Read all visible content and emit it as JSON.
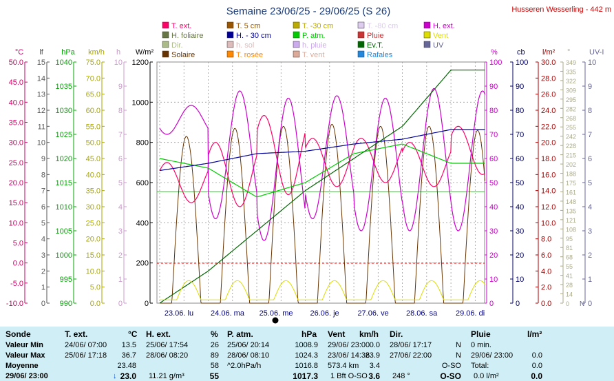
{
  "title": "Semaine 23/06/25 - 29/06/25 (S 26)",
  "station": "Husseren Wesserling - 442 m",
  "colors": {
    "title": "#1a3a7a",
    "station": "#cc0000",
    "grid": "#999999",
    "red_line": "#dd0000",
    "green_line": "#33cc33",
    "panel": "#cfeef5"
  },
  "legend": [
    {
      "label": "T. ext.",
      "color": "#ff0066"
    },
    {
      "label": "T. 5 cm",
      "color": "#995500"
    },
    {
      "label": "T. -30 cm",
      "color": "#bbaa00"
    },
    {
      "label": "T. -80 cm",
      "color": "#ddccee"
    },
    {
      "label": "H. ext.",
      "color": "#cc00cc"
    },
    {
      "label": "H. foliaire",
      "color": "#667744"
    },
    {
      "label": "H. - 30 cm",
      "color": "#000099"
    },
    {
      "label": "P. atm.",
      "color": "#00cc00"
    },
    {
      "label": "Pluie",
      "color": "#cc3333"
    },
    {
      "label": "Vent",
      "color": "#dddd00"
    },
    {
      "label": "Dir.",
      "color": "#aabb88"
    },
    {
      "label": "h. sol",
      "color": "#ddbbbb"
    },
    {
      "label": "h. pluie",
      "color": "#ccaaee"
    },
    {
      "label": "Ev.T.",
      "color": "#006600"
    },
    {
      "label": "UV",
      "color": "#666699"
    },
    {
      "label": "Solaire",
      "color": "#663300"
    },
    {
      "label": "T. rosée",
      "color": "#ff8800"
    },
    {
      "label": "T. vent",
      "color": "#ddaa99"
    },
    {
      "label": "Rafales",
      "color": "#2288dd"
    }
  ],
  "axes": {
    "left": [
      {
        "unit": "°C",
        "color": "#cc0066",
        "ticks": [
          "50.0",
          "45.0",
          "40.0",
          "35.0",
          "30.0",
          "25.0",
          "20.0",
          "15.0",
          "10.0",
          "5.0",
          "0.0",
          "-5.0",
          "-10.0"
        ]
      },
      {
        "unit": "lf",
        "color": "#555555",
        "ticks": [
          "15",
          "14",
          "13",
          "12",
          "11",
          "10",
          "9",
          "8",
          "7",
          "6",
          "5",
          "4",
          "3",
          "2",
          "1",
          "0"
        ]
      },
      {
        "unit": "hPa",
        "color": "#00aa00",
        "ticks": [
          "1040",
          "1035",
          "1030",
          "1025",
          "1020",
          "1015",
          "1010",
          "1005",
          "1000",
          "995",
          "990"
        ]
      },
      {
        "unit": "km/h",
        "color": "#aaaa00",
        "ticks": [
          "75.0",
          "70.0",
          "65.0",
          "60.0",
          "55.0",
          "50.0",
          "45.0",
          "40.0",
          "35.0",
          "30.0",
          "25.0",
          "20.0",
          "15.0",
          "10.0",
          "5.0",
          "0.0"
        ]
      },
      {
        "unit": "h",
        "color": "#cc99cc",
        "ticks": [
          "10",
          "9",
          "8",
          "7",
          "6",
          "5",
          "4",
          "3",
          "2",
          "1",
          "0"
        ]
      },
      {
        "unit": "W/m²",
        "color": "#000000",
        "ticks": [
          "1200",
          "1000",
          "800",
          "600",
          "400",
          "200",
          "0"
        ]
      }
    ],
    "right": [
      {
        "unit": "%",
        "color": "#cc00cc",
        "ticks": [
          "100",
          "90",
          "80",
          "70",
          "60",
          "50",
          "40",
          "30",
          "20",
          "10",
          "0"
        ]
      },
      {
        "unit": "cb",
        "color": "#000066",
        "ticks": [
          "100",
          "90",
          "80",
          "70",
          "60",
          "50",
          "40",
          "30",
          "20",
          "10",
          "0"
        ]
      },
      {
        "unit": "l/m²",
        "color": "#aa0000",
        "ticks": [
          "30.0",
          "28.0",
          "26.0",
          "24.0",
          "22.0",
          "20.0",
          "18.0",
          "16.0",
          "14.0",
          "12.0",
          "10.0",
          "8.0",
          "6.0",
          "4.0",
          "2.0",
          "0.0"
        ]
      },
      {
        "unit": "°",
        "color": "#aaaa88",
        "ticks": [
          "349",
          "335",
          "322",
          "309",
          "295",
          "282",
          "268",
          "255",
          "242",
          "228",
          "215",
          "202",
          "188",
          "175",
          "161",
          "148",
          "135",
          "121",
          "108",
          "95",
          "81",
          "68",
          "55",
          "41",
          "28",
          "14",
          "0"
        ]
      },
      {
        "unit": "UV-I",
        "color": "#666699",
        "ticks": [
          "10",
          "9",
          "8",
          "7",
          "6",
          "5",
          "4",
          "3",
          "2",
          "1",
          "0"
        ]
      }
    ],
    "right_extra": [
      "N"
    ],
    "x_labels": [
      "23.06. lu",
      "24.06. ma",
      "25.06. me",
      "26.06. je",
      "27.06. ve",
      "28.06. sa",
      "29.06. di"
    ]
  },
  "chart_data": {
    "type": "line",
    "title": "Semaine 23/06/25 - 29/06/25 (S 26)",
    "x": [
      "23.06.",
      "24.06.",
      "25.06.",
      "26.06.",
      "27.06.",
      "28.06.",
      "29.06."
    ],
    "series": [
      {
        "name": "T. ext.",
        "unit": "°C",
        "min": 13.5,
        "max": 36.7,
        "mean": 23.48,
        "daily_min": [
          15,
          14,
          17,
          19,
          20,
          19,
          22
        ],
        "daily_max": [
          25,
          30,
          36.7,
          31,
          31,
          30,
          34
        ]
      },
      {
        "name": "H. ext.",
        "unit": "%",
        "min": 26,
        "max": 89,
        "mean": 58,
        "daily_min": [
          70,
          35,
          26,
          35,
          30,
          30,
          30
        ],
        "daily_max": [
          82,
          88,
          85,
          86,
          85,
          89,
          88
        ]
      },
      {
        "name": "P. atm.",
        "unit": "hPa",
        "min": 1008.9,
        "max": 1024.3,
        "mean": 1016.8,
        "values": [
          1020,
          1018,
          1012,
          1015,
          1021,
          1023,
          1019
        ]
      },
      {
        "name": "Vent",
        "unit": "km/h",
        "min": 0.0,
        "max": 23.9,
        "mean": 3.4
      },
      {
        "name": "H. - 30 cm",
        "unit": "cb",
        "values": [
          55,
          58,
          62,
          63,
          66,
          68,
          72
        ]
      },
      {
        "name": "Ev.T.",
        "unit": "l/m²",
        "values": [
          0,
          4,
          9,
          14,
          18,
          22,
          29
        ]
      },
      {
        "name": "Solaire",
        "unit": "W/m²",
        "daily_max": [
          830,
          870,
          880,
          890,
          880,
          880,
          860
        ]
      }
    ]
  },
  "table": {
    "headers": {
      "sonde": "Sonde",
      "text": "T. ext.",
      "text_u": "°C",
      "hext": "H. ext.",
      "hext_u": "%",
      "patm": "P. atm.",
      "patm_u": "hPa",
      "vent": "Vent",
      "vent_u": "km/h",
      "dir": "Dir.",
      "pluie": "Pluie",
      "pluie_u": "l/m²"
    },
    "rows": {
      "min": {
        "label": "Valeur Min",
        "t_date": "24/06/ 07:00",
        "t_val": "13.5",
        "h_date": "25/06/ 17:54",
        "h_val": "26",
        "p_date": "25/06/ 20:14",
        "p_val": "1008.9",
        "v_date": "29/06/ 23:00",
        "v_val": "0.0",
        "d_date": "28/06/ 17:17",
        "d_val": "N",
        "r_text": "0 min."
      },
      "max": {
        "label": "Valeur Max",
        "t_date": "25/06/ 17:18",
        "t_val": "36.7",
        "h_date": "28/06/ 08:20",
        "h_val": "89",
        "p_date": "28/06/ 08:10",
        "p_val": "1024.3",
        "v_date": "23/06/ 14:36",
        "v_val": "23.9",
        "d_date": "27/06/ 22:00",
        "d_val": "N",
        "r_text": "29/06/ 23:00",
        "r_val": "0.0"
      },
      "mean": {
        "label": "Moyenne",
        "t_val": "23.48",
        "h_val": "58",
        "p_date": "^2.0hPa/h",
        "p_val": "1016.8",
        "v_date": "573.4 km",
        "v_val": "3.4",
        "d_val": "O-SO",
        "r_text": "Total:",
        "r_val": "0.0"
      },
      "current": {
        "label": "29/06/ 23:00",
        "t_val": "23.0",
        "h_date": "11.21 g/m³",
        "h_val": "55",
        "p_val": "1017.3",
        "v_date": "1 Bft O-SO",
        "v_val": "3.6",
        "d_date": "248 °",
        "d_val": "O-SO",
        "r_text": "0.0 l/m²",
        "r_val": "0.0"
      }
    }
  }
}
